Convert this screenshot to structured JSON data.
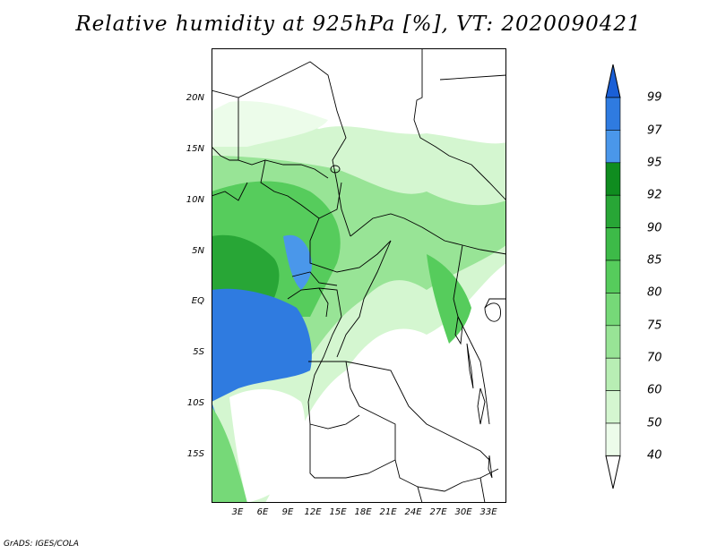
{
  "title": "Relative humidity at 925hPa [%], VT: 2020090421",
  "credit": "GrADS: IGES/COLA",
  "y_ticks": [
    "20N",
    "15N",
    "10N",
    "5N",
    "EQ",
    "5S",
    "10S",
    "15S"
  ],
  "x_ticks": [
    "3E",
    "6E",
    "9E",
    "12E",
    "15E",
    "18E",
    "21E",
    "24E",
    "27E",
    "30E",
    "33E"
  ],
  "colorbar": {
    "labels": [
      "99",
      "97",
      "95",
      "92",
      "90",
      "85",
      "80",
      "75",
      "70",
      "60",
      "50",
      "40"
    ],
    "colors": [
      "#1a5fd6",
      "#2f7be0",
      "#4a97ea",
      "#0f8c1f",
      "#28a636",
      "#3dba48",
      "#56cc5c",
      "#76d978",
      "#98e496",
      "#b8eeb4",
      "#d4f6d0",
      "#ecfcea",
      "#ffffff"
    ]
  }
}
